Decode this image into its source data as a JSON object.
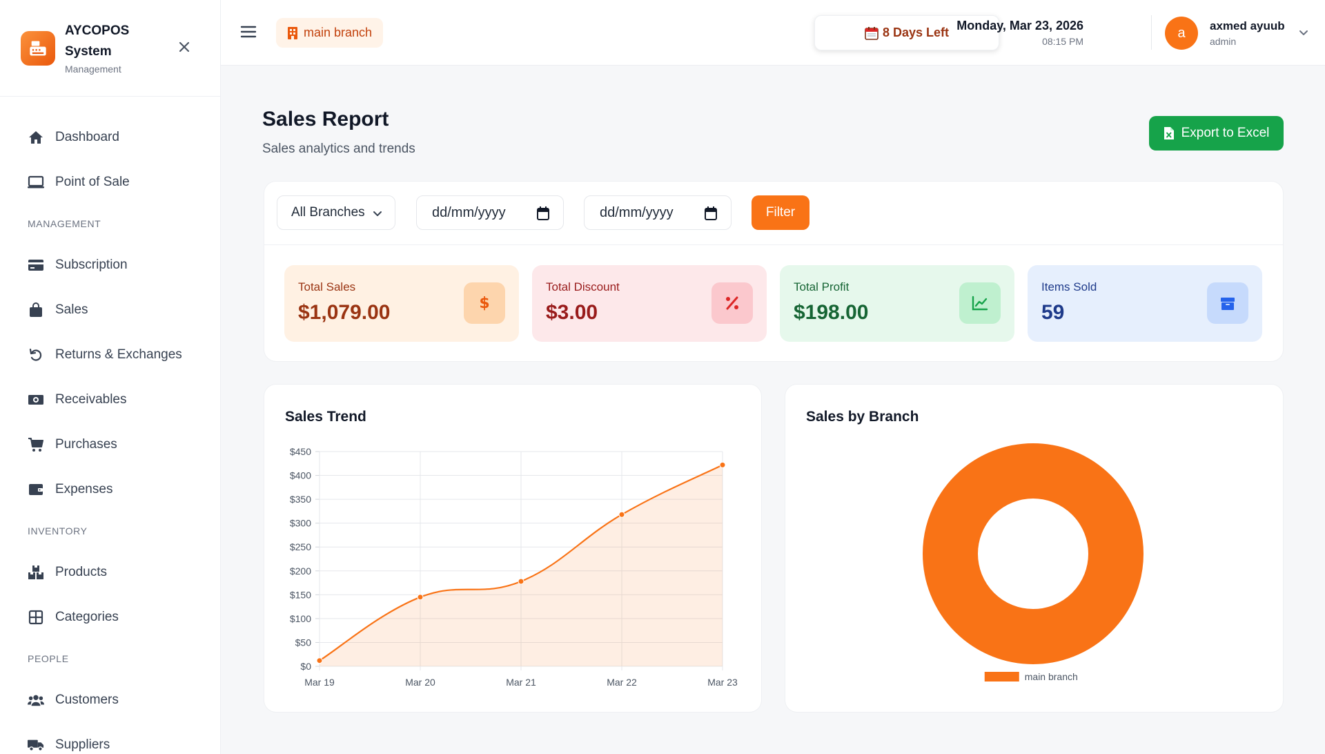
{
  "brand": {
    "name": "AYCOPOS System",
    "subtitle": "Management"
  },
  "sidebar": {
    "items": [
      {
        "label": "Dashboard",
        "icon": "home-icon"
      },
      {
        "label": "Point of Sale",
        "icon": "monitor-icon"
      },
      {
        "section": "MANAGEMENT"
      },
      {
        "label": "Subscription",
        "icon": "credit-card-icon"
      },
      {
        "label": "Sales",
        "icon": "shopping-bag-icon"
      },
      {
        "label": "Returns & Exchanges",
        "icon": "undo-icon"
      },
      {
        "label": "Receivables",
        "icon": "money-icon"
      },
      {
        "label": "Purchases",
        "icon": "cart-icon"
      },
      {
        "label": "Expenses",
        "icon": "wallet-icon"
      },
      {
        "section": "INVENTORY"
      },
      {
        "label": "Products",
        "icon": "boxes-icon"
      },
      {
        "label": "Categories",
        "icon": "grid-icon"
      },
      {
        "section": "PEOPLE"
      },
      {
        "label": "Customers",
        "icon": "users-icon"
      },
      {
        "label": "Suppliers",
        "icon": "truck-icon"
      }
    ]
  },
  "topbar": {
    "branch": "main branch",
    "days_left": "8 Days Left",
    "date": "Monday, Mar 23, 2026",
    "time": "08:15 PM",
    "user": {
      "initial": "a",
      "name": "axmed ayuub",
      "role": "admin"
    }
  },
  "page": {
    "title": "Sales Report",
    "subtitle": "Sales analytics and trends",
    "export_label": "Export to Excel"
  },
  "filters": {
    "branch_select": "All Branches",
    "start_date_placeholder": "dd/mm/yyyy",
    "end_date_placeholder": "dd/mm/yyyy",
    "filter_label": "Filter"
  },
  "stats": [
    {
      "label": "Total Sales",
      "value": "$1,079.00",
      "icon": "dollar-icon",
      "bg": "#fff1e3",
      "fg": "#9a3412",
      "icon_bg": "#fdd5ad",
      "icon_fg": "#ea580c"
    },
    {
      "label": "Total Discount",
      "value": "$3.00",
      "icon": "percent-icon",
      "bg": "#fde8ea",
      "fg": "#991b1b",
      "icon_bg": "#fbc8cd",
      "icon_fg": "#dc2626"
    },
    {
      "label": "Total Profit",
      "value": "$198.00",
      "icon": "chart-line-icon",
      "bg": "#e6f8ec",
      "fg": "#166534",
      "icon_bg": "#bff0cf",
      "icon_fg": "#16a34a"
    },
    {
      "label": "Items Sold",
      "value": "59",
      "icon": "box-icon",
      "bg": "#e6effd",
      "fg": "#1e3a8a",
      "icon_bg": "#c6dafc",
      "icon_fg": "#2563eb"
    }
  ],
  "sales_trend": {
    "title": "Sales Trend"
  },
  "sales_by_branch": {
    "title": "Sales by Branch"
  },
  "chart_data": [
    {
      "type": "line",
      "title": "Sales Trend",
      "categories": [
        "Mar 19",
        "Mar 20",
        "Mar 21",
        "Mar 22",
        "Mar 23"
      ],
      "values": [
        12,
        145,
        178,
        318,
        422
      ],
      "yticks": [
        "$0",
        "$50",
        "$100",
        "$150",
        "$200",
        "$250",
        "$300",
        "$350",
        "$400",
        "$450"
      ],
      "ylim": [
        0,
        450
      ],
      "grid": true,
      "area_fill": true,
      "color": "#f97316"
    },
    {
      "type": "pie",
      "title": "Sales by Branch",
      "doughnut": true,
      "labels": [
        "main branch"
      ],
      "values": [
        1079
      ],
      "colors": [
        "#f97316"
      ],
      "legend": "bottom"
    }
  ]
}
